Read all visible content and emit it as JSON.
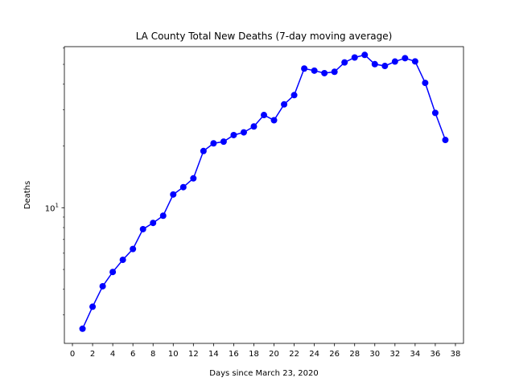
{
  "chart_data": {
    "type": "line",
    "title": "LA County Total New Deaths (7-day moving average)",
    "xlabel": "Days since March 23, 2020",
    "ylabel": "Deaths",
    "yscale": "log",
    "xlim": [
      -0.8,
      38.8
    ],
    "ylim": [
      2.18,
      61
    ],
    "x_ticks": [
      0,
      2,
      4,
      6,
      8,
      10,
      12,
      14,
      16,
      18,
      20,
      22,
      24,
      26,
      28,
      30,
      32,
      34,
      36,
      38
    ],
    "y_major_ticks": [
      {
        "value": 10,
        "base": "10",
        "exp": "1"
      }
    ],
    "y_minor_ticks": [
      3,
      4,
      5,
      6,
      7,
      8,
      9,
      20,
      30,
      40,
      50,
      60
    ],
    "grid": false,
    "color": "#0000ff",
    "marker": "circle",
    "series": [
      {
        "x": [
          1,
          2,
          3,
          4,
          5,
          6,
          7,
          8,
          9,
          10,
          11,
          12,
          13,
          14,
          15,
          16,
          17,
          18,
          19,
          20,
          21,
          22,
          23,
          24,
          25,
          26,
          27,
          28,
          29,
          30,
          31,
          32,
          33,
          34,
          35,
          36,
          37
        ],
        "y": [
          2.57,
          3.29,
          4.14,
          4.86,
          5.57,
          6.29,
          7.86,
          8.43,
          9.14,
          11.6,
          12.6,
          13.9,
          18.9,
          20.6,
          21.0,
          22.6,
          23.3,
          24.9,
          28.3,
          26.7,
          31.9,
          35.4,
          47.7,
          46.6,
          45.3,
          46.0,
          51.1,
          54.0,
          55.6,
          50.1,
          49.1,
          51.6,
          53.6,
          51.7,
          40.6,
          29.0,
          21.4
        ]
      }
    ]
  }
}
